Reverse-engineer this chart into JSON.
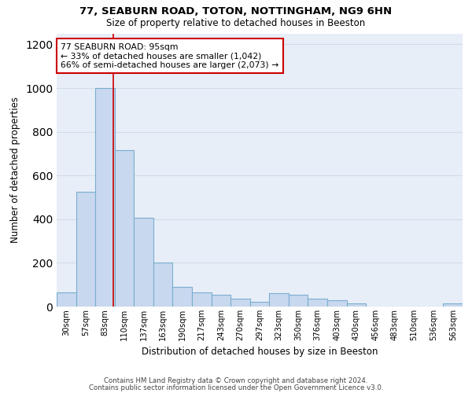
{
  "title1": "77, SEABURN ROAD, TOTON, NOTTINGHAM, NG9 6HN",
  "title2": "Size of property relative to detached houses in Beeston",
  "xlabel": "Distribution of detached houses by size in Beeston",
  "ylabel": "Number of detached properties",
  "footer1": "Contains HM Land Registry data © Crown copyright and database right 2024.",
  "footer2": "Contains public sector information licensed under the Open Government Licence v3.0.",
  "bar_labels": [
    "30sqm",
    "57sqm",
    "83sqm",
    "110sqm",
    "137sqm",
    "163sqm",
    "190sqm",
    "217sqm",
    "243sqm",
    "270sqm",
    "297sqm",
    "323sqm",
    "350sqm",
    "376sqm",
    "403sqm",
    "430sqm",
    "456sqm",
    "483sqm",
    "510sqm",
    "536sqm",
    "563sqm"
  ],
  "bar_values": [
    65,
    525,
    1000,
    715,
    405,
    200,
    90,
    65,
    55,
    35,
    20,
    60,
    55,
    35,
    30,
    15,
    0,
    0,
    0,
    0,
    15
  ],
  "bar_color": "#c8d8ee",
  "bar_edge_color": "#7aaed0",
  "grid_color": "#d0dcea",
  "background_color": "#e8eef8",
  "property_line_color": "#cc0000",
  "annotation_text": "77 SEABURN ROAD: 95sqm\n← 33% of detached houses are smaller (1,042)\n66% of semi-detached houses are larger (2,073) →",
  "annotation_box_color": "#ffffff",
  "annotation_box_edge_color": "#cc0000",
  "ylim": [
    0,
    1250
  ],
  "yticks": [
    0,
    200,
    400,
    600,
    800,
    1000,
    1200
  ]
}
